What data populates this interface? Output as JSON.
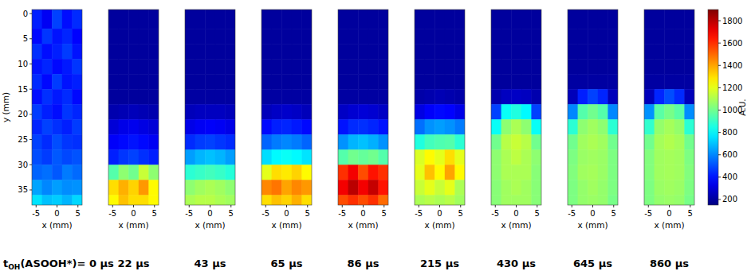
{
  "chart_data": {
    "type": "heatmap",
    "xlabel": "x (mm)",
    "ylabel": "y (mm)",
    "xlim": [
      -6,
      6
    ],
    "ylim": [
      -0.8,
      38
    ],
    "xticks": [
      -5,
      0,
      5
    ],
    "yticks": [
      0,
      5,
      10,
      15,
      20,
      25,
      30,
      35
    ],
    "x_edges": [
      -6,
      -3.6,
      -1.2,
      1.2,
      3.6,
      6
    ],
    "y_edges": [
      -0.8,
      3,
      6,
      9,
      12,
      15,
      18,
      21,
      24,
      27,
      30,
      33,
      36,
      38
    ],
    "time_symbol": "t",
    "time_subscript": "OH",
    "time_qualifier": "(ASOOH*)=",
    "time_unit": "µs",
    "colorbar": {
      "range": [
        150,
        1900
      ],
      "ticks": [
        200,
        400,
        600,
        800,
        1000,
        1200,
        1400,
        1600,
        1800
      ],
      "label": "A.U."
    },
    "panels": [
      {
        "time": 0,
        "cells": [
          [
            420,
            350,
            480,
            390,
            440
          ],
          [
            380,
            460,
            400,
            430,
            370
          ],
          [
            450,
            390,
            420,
            470,
            400
          ],
          [
            400,
            430,
            380,
            410,
            460
          ],
          [
            440,
            380,
            470,
            400,
            420
          ],
          [
            390,
            450,
            410,
            440,
            380
          ],
          [
            470,
            420,
            390,
            460,
            430
          ],
          [
            430,
            480,
            450,
            420,
            470
          ],
          [
            480,
            440,
            500,
            460,
            450
          ],
          [
            500,
            470,
            520,
            490,
            510
          ],
          [
            540,
            560,
            520,
            580,
            550
          ],
          [
            650,
            600,
            640,
            610,
            620
          ],
          [
            760,
            700,
            720,
            680,
            740
          ]
        ]
      },
      {
        "time": 22,
        "cells": [
          [
            200,
            200,
            200,
            200,
            200
          ],
          [
            200,
            200,
            200,
            200,
            200
          ],
          [
            200,
            200,
            200,
            200,
            200
          ],
          [
            200,
            200,
            200,
            200,
            200
          ],
          [
            200,
            200,
            200,
            200,
            200
          ],
          [
            200,
            200,
            200,
            200,
            200
          ],
          [
            230,
            240,
            250,
            240,
            230
          ],
          [
            300,
            330,
            340,
            320,
            300
          ],
          [
            360,
            380,
            400,
            380,
            350
          ],
          [
            420,
            460,
            480,
            450,
            420
          ],
          [
            950,
            1050,
            1000,
            1150,
            1050
          ],
          [
            1300,
            1380,
            1320,
            1420,
            1250
          ],
          [
            1250,
            1350,
            1300,
            1300,
            1250
          ]
        ]
      },
      {
        "time": 43,
        "cells": [
          [
            200,
            200,
            200,
            200,
            200
          ],
          [
            200,
            200,
            200,
            200,
            200
          ],
          [
            200,
            200,
            200,
            200,
            200
          ],
          [
            200,
            200,
            200,
            200,
            200
          ],
          [
            200,
            200,
            200,
            200,
            200
          ],
          [
            210,
            210,
            210,
            210,
            210
          ],
          [
            250,
            260,
            260,
            260,
            250
          ],
          [
            330,
            350,
            360,
            350,
            330
          ],
          [
            440,
            470,
            480,
            460,
            440
          ],
          [
            640,
            680,
            700,
            680,
            640
          ],
          [
            880,
            900,
            920,
            900,
            870
          ],
          [
            1050,
            1080,
            1100,
            1080,
            1050
          ],
          [
            1100,
            1120,
            1120,
            1100,
            1080
          ]
        ]
      },
      {
        "time": 65,
        "cells": [
          [
            200,
            200,
            200,
            200,
            200
          ],
          [
            200,
            200,
            200,
            200,
            200
          ],
          [
            200,
            200,
            200,
            200,
            200
          ],
          [
            200,
            200,
            200,
            200,
            200
          ],
          [
            200,
            200,
            200,
            200,
            200
          ],
          [
            210,
            210,
            210,
            210,
            210
          ],
          [
            250,
            270,
            280,
            270,
            250
          ],
          [
            380,
            420,
            430,
            410,
            380
          ],
          [
            540,
            580,
            600,
            580,
            540
          ],
          [
            750,
            800,
            820,
            800,
            760
          ],
          [
            1200,
            1300,
            1280,
            1320,
            1250
          ],
          [
            1450,
            1480,
            1400,
            1450,
            1420
          ],
          [
            1300,
            1350,
            1320,
            1380,
            1300
          ]
        ]
      },
      {
        "time": 86,
        "cells": [
          [
            200,
            200,
            200,
            200,
            200
          ],
          [
            200,
            200,
            200,
            200,
            200
          ],
          [
            200,
            200,
            200,
            200,
            200
          ],
          [
            200,
            200,
            200,
            200,
            200
          ],
          [
            200,
            200,
            200,
            200,
            200
          ],
          [
            210,
            210,
            210,
            210,
            210
          ],
          [
            270,
            290,
            300,
            290,
            270
          ],
          [
            400,
            440,
            450,
            430,
            400
          ],
          [
            620,
            680,
            700,
            670,
            620
          ],
          [
            950,
            1000,
            980,
            1000,
            950
          ],
          [
            1600,
            1700,
            1550,
            1650,
            1600
          ],
          [
            1700,
            1800,
            1700,
            1780,
            1650
          ],
          [
            1550,
            1600,
            1550,
            1600,
            1500
          ]
        ]
      },
      {
        "time": 215,
        "cells": [
          [
            200,
            200,
            200,
            200,
            200
          ],
          [
            200,
            200,
            200,
            200,
            200
          ],
          [
            200,
            200,
            200,
            200,
            200
          ],
          [
            200,
            200,
            200,
            200,
            200
          ],
          [
            200,
            200,
            200,
            200,
            200
          ],
          [
            220,
            230,
            240,
            230,
            220
          ],
          [
            320,
            360,
            380,
            370,
            330
          ],
          [
            560,
            620,
            640,
            620,
            580
          ],
          [
            860,
            920,
            940,
            950,
            880
          ],
          [
            1180,
            1250,
            1200,
            1300,
            1200
          ],
          [
            1200,
            1350,
            1250,
            1400,
            1250
          ],
          [
            1150,
            1200,
            1150,
            1200,
            1100
          ],
          [
            1100,
            1120,
            1100,
            1120,
            1080
          ]
        ]
      },
      {
        "time": 430,
        "cells": [
          [
            200,
            200,
            200,
            200,
            200
          ],
          [
            200,
            200,
            200,
            200,
            200
          ],
          [
            200,
            200,
            200,
            200,
            200
          ],
          [
            200,
            200,
            200,
            200,
            200
          ],
          [
            200,
            200,
            200,
            200,
            200
          ],
          [
            230,
            260,
            270,
            260,
            230
          ],
          [
            480,
            820,
            860,
            800,
            480
          ],
          [
            820,
            1050,
            1100,
            1050,
            820
          ],
          [
            1000,
            1120,
            1150,
            1120,
            1000
          ],
          [
            1050,
            1100,
            1130,
            1100,
            1050
          ],
          [
            1050,
            1100,
            1100,
            1100,
            1040
          ],
          [
            1040,
            1080,
            1100,
            1080,
            1040
          ],
          [
            1040,
            1080,
            1080,
            1080,
            1040
          ]
        ]
      },
      {
        "time": 645,
        "cells": [
          [
            200,
            200,
            200,
            200,
            200
          ],
          [
            200,
            200,
            200,
            200,
            200
          ],
          [
            200,
            200,
            200,
            200,
            200
          ],
          [
            200,
            200,
            200,
            200,
            200
          ],
          [
            210,
            210,
            210,
            210,
            210
          ],
          [
            250,
            420,
            480,
            430,
            250
          ],
          [
            600,
            950,
            1000,
            950,
            600
          ],
          [
            880,
            1050,
            1080,
            1050,
            880
          ],
          [
            1000,
            1080,
            1100,
            1080,
            1000
          ],
          [
            1020,
            1070,
            1080,
            1070,
            1020
          ],
          [
            1030,
            1080,
            1090,
            1070,
            1020
          ],
          [
            1020,
            1060,
            1080,
            1060,
            1020
          ],
          [
            1020,
            1060,
            1070,
            1060,
            1010
          ]
        ]
      },
      {
        "time": 860,
        "cells": [
          [
            200,
            200,
            200,
            200,
            200
          ],
          [
            200,
            200,
            200,
            200,
            200
          ],
          [
            200,
            200,
            200,
            200,
            200
          ],
          [
            200,
            200,
            200,
            200,
            200
          ],
          [
            210,
            210,
            210,
            210,
            210
          ],
          [
            250,
            430,
            500,
            440,
            250
          ],
          [
            620,
            960,
            1010,
            960,
            610
          ],
          [
            890,
            1060,
            1090,
            1060,
            880
          ],
          [
            1000,
            1090,
            1110,
            1090,
            1000
          ],
          [
            1030,
            1080,
            1090,
            1080,
            1020
          ],
          [
            1030,
            1080,
            1090,
            1080,
            1030
          ],
          [
            1020,
            1070,
            1080,
            1070,
            1020
          ],
          [
            1020,
            1060,
            1070,
            1060,
            1010
          ]
        ]
      }
    ]
  }
}
